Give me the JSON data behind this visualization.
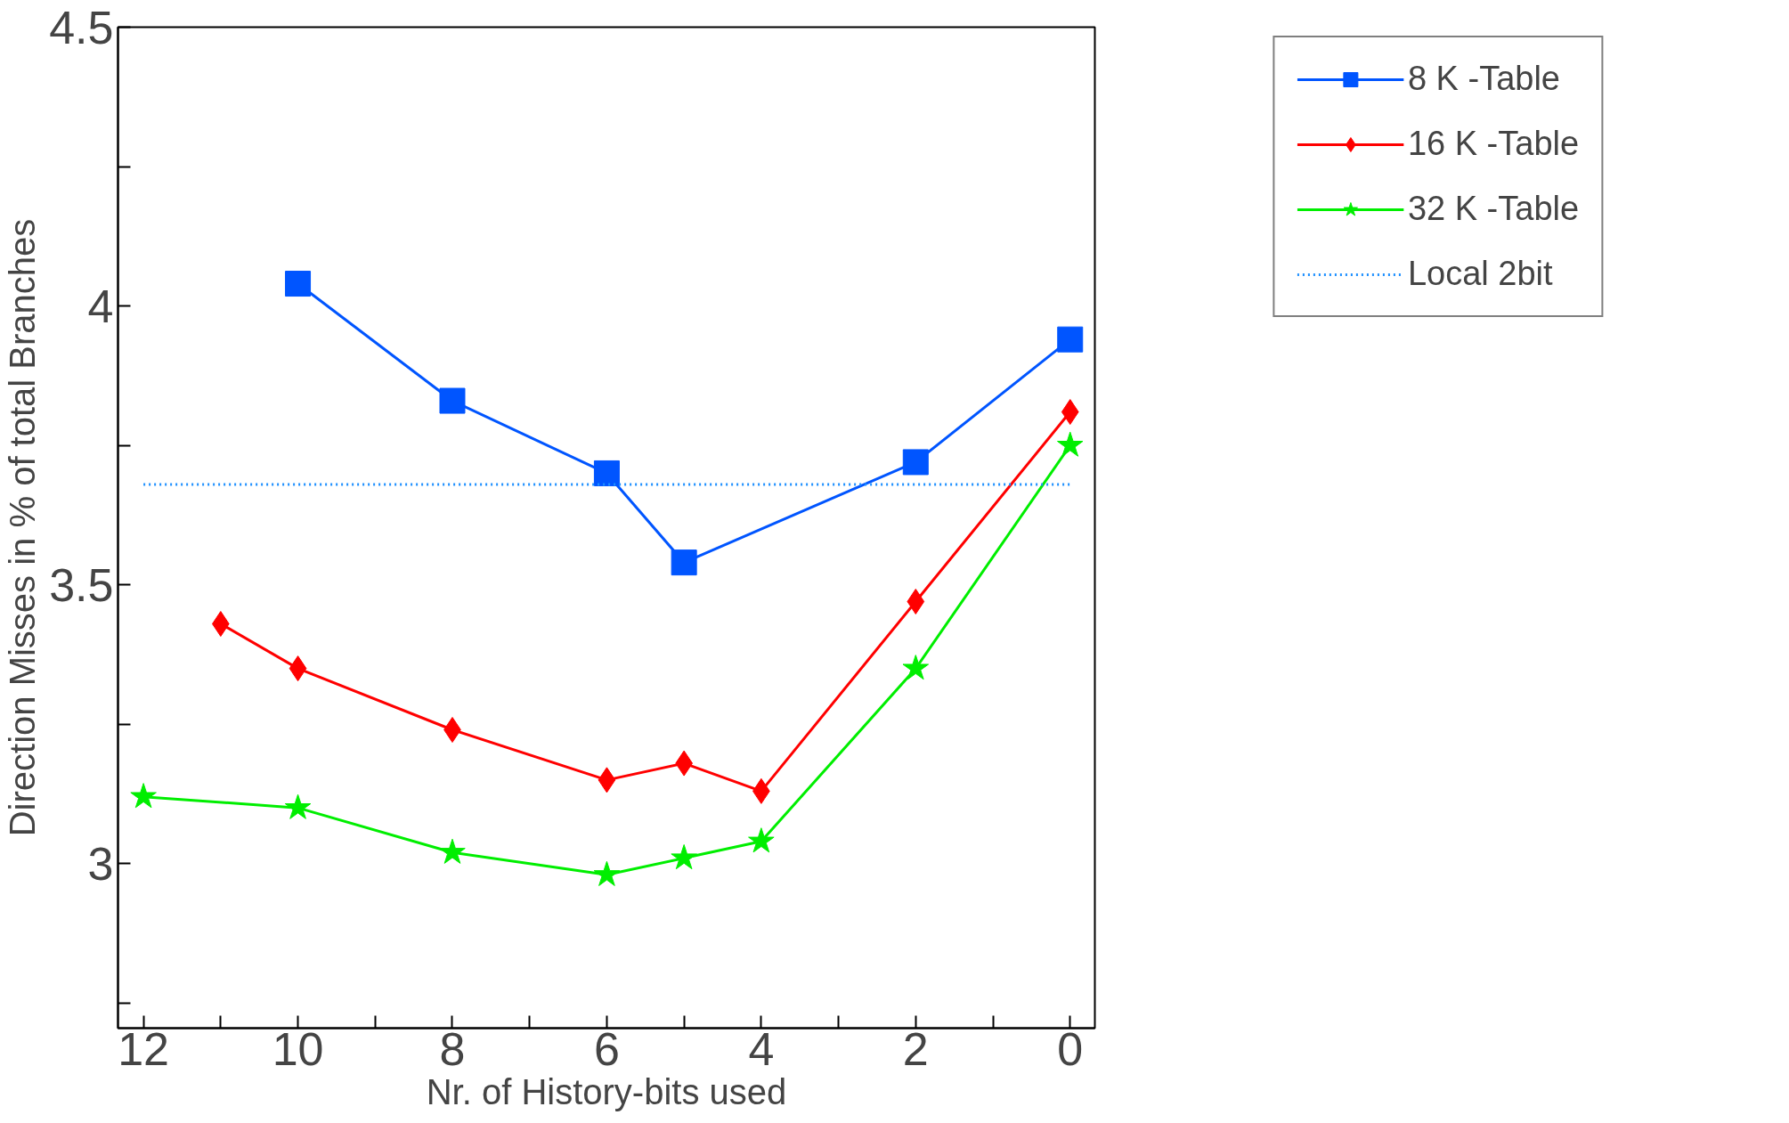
{
  "chart_data": {
    "type": "line",
    "xlabel": "Nr. of History-bits used",
    "ylabel": "Direction Misses in % of total Branches",
    "xlim": [
      12.33,
      -0.32
    ],
    "ylim": [
      2.705,
      4.5
    ],
    "xticks": [
      12,
      {
        "value": 11,
        "label": null
      },
      10,
      {
        "value": 9,
        "label": null
      },
      8,
      {
        "value": 7,
        "label": null
      },
      6,
      {
        "value": 5,
        "label": null
      },
      4,
      {
        "value": 3,
        "label": null
      },
      2,
      {
        "value": 1,
        "label": null
      },
      0
    ],
    "yticks": [
      {
        "value": 2.75,
        "label": null
      },
      3,
      {
        "value": 3.25,
        "label": null
      },
      3.5,
      {
        "value": 3.75,
        "label": null
      },
      4,
      {
        "value": 4.25,
        "label": null
      },
      4.5
    ],
    "grid": false,
    "legend": "top right",
    "line_style": "solid",
    "series": [
      {
        "name": "8 K -Table",
        "color": "#0055ff",
        "marker": "square",
        "x": [
          10,
          8,
          6,
          5,
          2,
          0
        ],
        "values": [
          4.04,
          3.83,
          3.7,
          3.54,
          3.72,
          3.94
        ]
      },
      {
        "name": "16 K -Table",
        "color": "#ff0000",
        "marker": "diamond",
        "x": [
          11,
          10,
          8,
          6,
          5,
          4,
          2,
          0
        ],
        "values": [
          3.43,
          3.35,
          3.24,
          3.15,
          3.18,
          3.13,
          3.47,
          3.81
        ]
      },
      {
        "name": "32 K -Table",
        "color": "#00ee00",
        "marker": "star",
        "x": [
          12,
          10,
          8,
          6,
          5,
          4,
          2,
          0
        ],
        "values": [
          3.12,
          3.1,
          3.02,
          2.98,
          3.01,
          3.04,
          3.35,
          3.75
        ]
      },
      {
        "name": "Local 2bit",
        "color": "#1e90ff",
        "marker": "none",
        "line_style": "dotted",
        "x": [
          12,
          0
        ],
        "values": [
          3.68,
          3.68
        ]
      }
    ]
  }
}
